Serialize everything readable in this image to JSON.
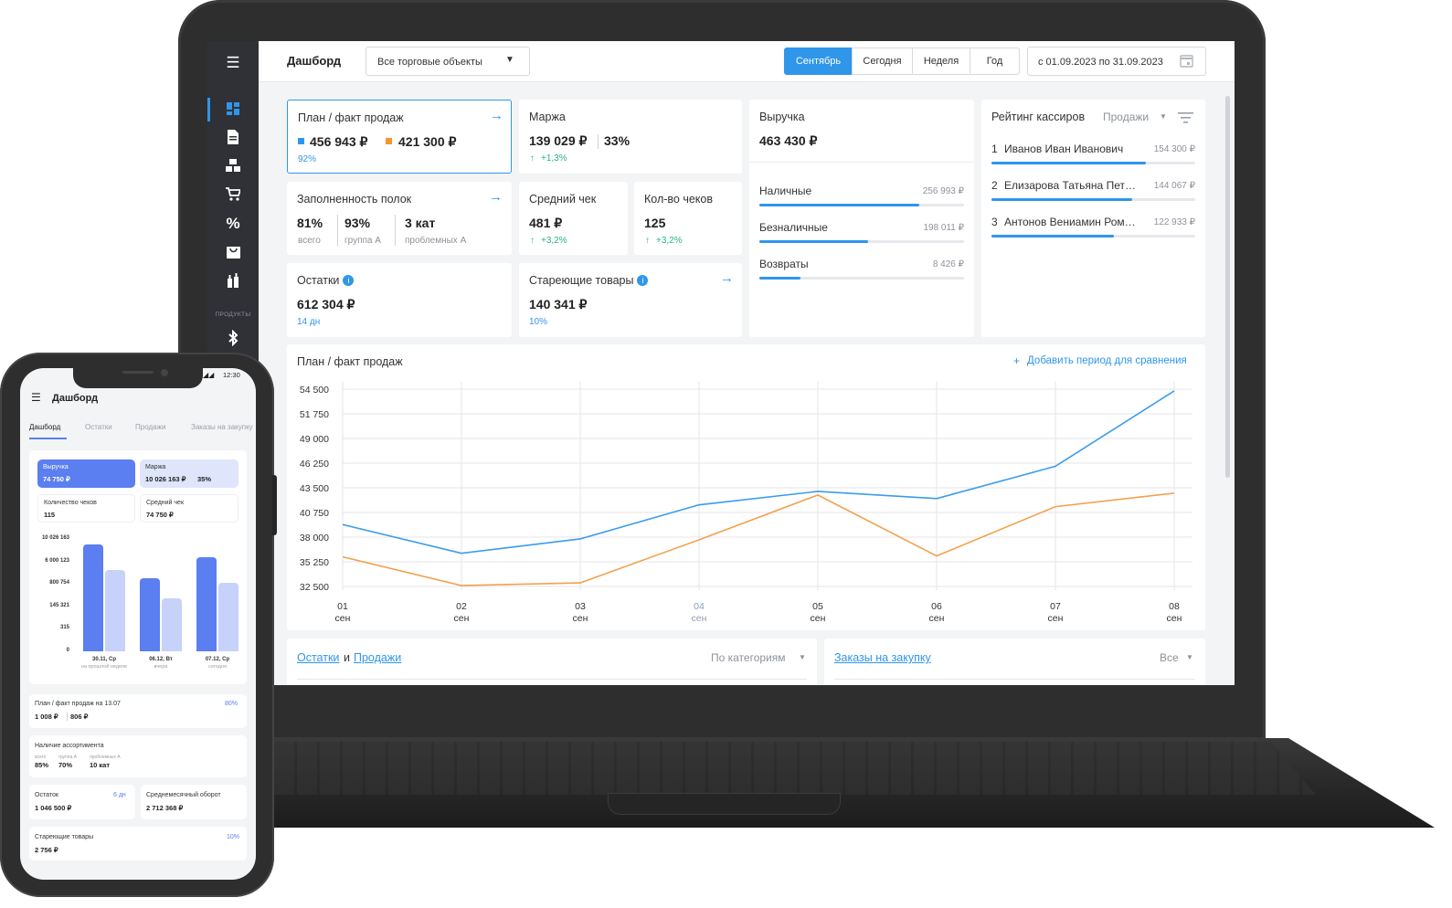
{
  "laptop": {
    "header": {
      "title": "Дашборд",
      "store_select": "Все торговые объекты",
      "periods": [
        "Сентябрь",
        "Сегодня",
        "Неделя",
        "Год"
      ],
      "active_period": "Сентябрь",
      "date_range": "с 01.09.2023 по 31.09.2023"
    },
    "sidebar": {
      "section_label": "ПРОДУКТЫ",
      "icons": [
        "menu-icon",
        "dashboard-icon",
        "document-icon",
        "boxes-icon",
        "cart-icon",
        "percent-icon",
        "bag-icon",
        "bottles-icon",
        "bluetooth-icon"
      ]
    },
    "plan_fact": {
      "title": "План / факт продаж",
      "plan": "456 943 ₽",
      "fact": "421 300 ₽",
      "percent": "92%",
      "plan_color": "#2f96ea",
      "fact_color": "#f5962f"
    },
    "margin": {
      "title": "Маржа",
      "value": "139 029 ₽",
      "percent": "33%",
      "delta": "+1,3%"
    },
    "revenue": {
      "title": "Выручка",
      "value": "463 430 ₽",
      "rows": [
        {
          "label": "Наличные",
          "value": "256 993 ₽",
          "share": 0.78
        },
        {
          "label": "Безналичные",
          "value": "198 011 ₽",
          "share": 0.53
        },
        {
          "label": "Возвраты",
          "value": "8 426 ₽",
          "share": 0.2
        }
      ]
    },
    "cashiers": {
      "title": "Рейтинг кассиров",
      "filter": "Продажи",
      "rows": [
        {
          "rank": "1",
          "name": "Иванов Иван Иванович",
          "value": "154 300 ₽",
          "share": 0.76
        },
        {
          "rank": "2",
          "name": "Елизарова Татьяна Пет…",
          "value": "144 067 ₽",
          "share": 0.69
        },
        {
          "rank": "3",
          "name": "Антонов Вениамин Ром…",
          "value": "122 933 ₽",
          "share": 0.6
        }
      ]
    },
    "shelves": {
      "title": "Заполненность полок",
      "items": [
        {
          "value": "81%",
          "label": "всего"
        },
        {
          "value": "93%",
          "label": "группа А"
        },
        {
          "value": "3 кат",
          "label": "проблемных А"
        }
      ]
    },
    "avg_check": {
      "title": "Средний чек",
      "value": "481 ₽",
      "delta": "+3,2%"
    },
    "checks_count": {
      "title": "Кол-во чеков",
      "value": "125",
      "delta": "+3,2%"
    },
    "stock": {
      "title": "Остатки",
      "value": "612 304 ₽",
      "sub": "14 дн"
    },
    "aging": {
      "title": "Стареющие товары",
      "value": "140 341 ₽",
      "sub": "10%"
    },
    "chart": {
      "title": "План / факт продаж",
      "add_period": "Добавить период для сравнения"
    },
    "bottom": {
      "left_link1": "Остатки",
      "left_and": "и",
      "left_link2": "Продажи",
      "left_filter": "По категориям",
      "right_link": "Заказы на закупку",
      "right_filter": "Все"
    }
  },
  "chart_data": {
    "type": "line",
    "title": "План / факт продаж",
    "x": [
      "01",
      "02",
      "03",
      "04",
      "05",
      "06",
      "07",
      "08"
    ],
    "x_sub": "сен",
    "yticks": [
      "54 500",
      "51 750",
      "49 000",
      "46 250",
      "43 500",
      "40 750",
      "38 000",
      "35 250",
      "32 500"
    ],
    "ylim": [
      32500,
      54500
    ],
    "series": [
      {
        "color": "#3a9cee",
        "values": [
          39400,
          36200,
          37800,
          41600,
          43100,
          42300,
          45900,
          54300
        ]
      },
      {
        "color": "#f3a04c",
        "values": [
          35800,
          32600,
          32900,
          37700,
          42700,
          35900,
          41400,
          42900
        ]
      }
    ],
    "grid": true
  },
  "phone": {
    "status_time": "12:30",
    "title": "Дашборд",
    "tabs": [
      "Дашборд",
      "Остатки",
      "Продажи",
      "Заказы на закупку"
    ],
    "revenue": {
      "label": "Выручка",
      "value": "74 750 ₽"
    },
    "margin": {
      "label": "Маржа",
      "value": "10 026 163 ₽",
      "percent": "35%"
    },
    "checks": {
      "label": "Количество чеков",
      "value": "115"
    },
    "avg": {
      "label": "Средний чек",
      "value": "74 750 ₽"
    },
    "bar_chart": {
      "yticks": [
        "10 026 163",
        "6 000 123",
        "800 754",
        "145 321",
        "315",
        "0"
      ],
      "groups": [
        {
          "label": "30.11, Ср",
          "sub": "на прошлой неделе",
          "a": 0.95,
          "b": 0.72
        },
        {
          "label": "06.12, Вт",
          "sub": "вчера",
          "a": 0.65,
          "b": 0.47
        },
        {
          "label": "07.12, Ср",
          "sub": "сегодня",
          "a": 0.84,
          "b": 0.61
        }
      ]
    },
    "plan": {
      "label": "План / факт продаж на 13.07",
      "percent": "80%",
      "v1": "1 008 ₽",
      "v2": "806 ₽"
    },
    "assort": {
      "label": "Наличие ассортимента",
      "items": [
        {
          "value": "85%",
          "label": "всего"
        },
        {
          "value": "70%",
          "label": "группа А"
        },
        {
          "value": "10 кат",
          "label": "проблемных А"
        }
      ]
    },
    "stock": {
      "label": "Остаток",
      "days": "6 дн",
      "value": "1 046 500 ₽"
    },
    "turnover": {
      "label": "Среднемесячный оборот",
      "value": "2 712 368 ₽"
    },
    "aging": {
      "label": "Стареющие товары",
      "percent": "10%",
      "value": "2 756 ₽"
    }
  }
}
